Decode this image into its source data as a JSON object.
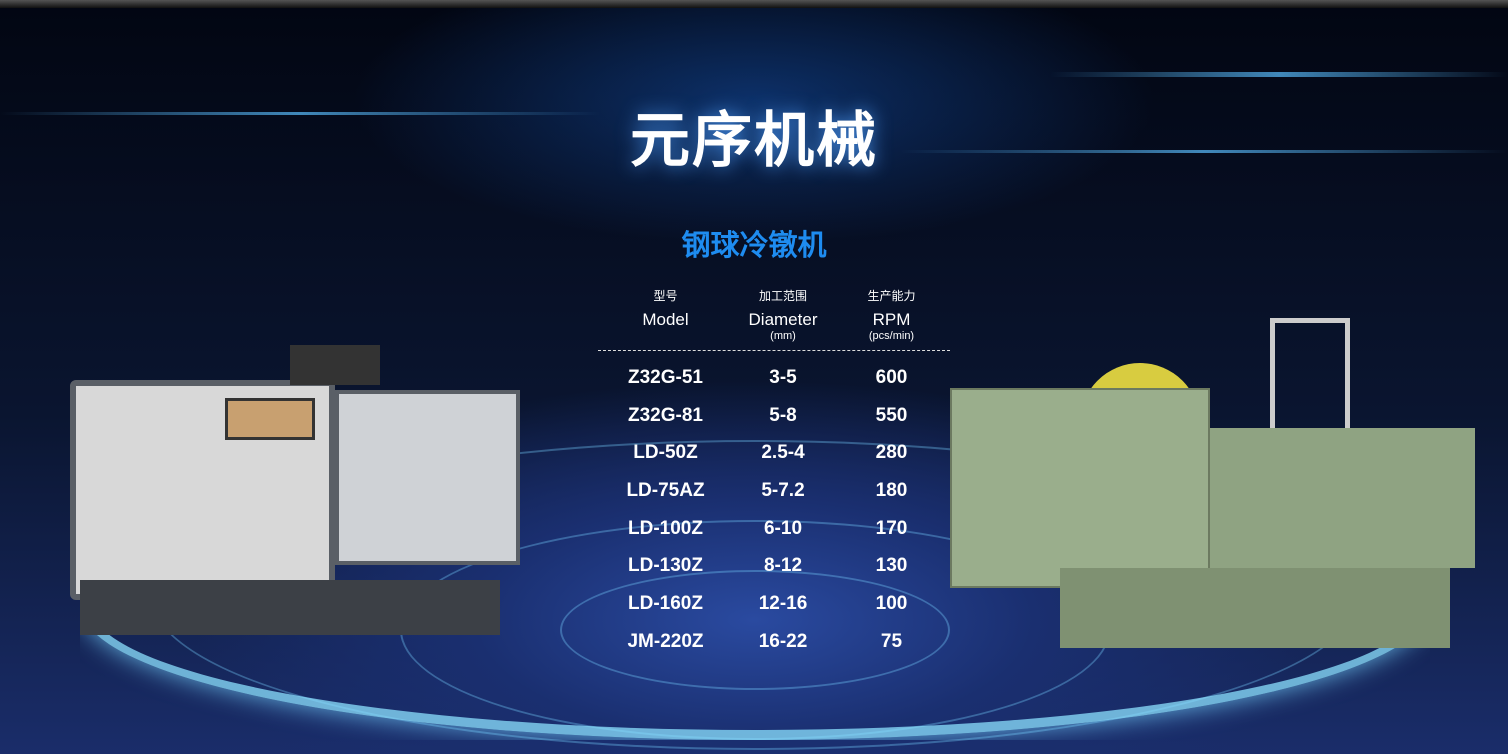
{
  "header": {
    "title": "元序机械"
  },
  "product": {
    "category": "钢球冷镦机",
    "columns": [
      {
        "cn": "型号",
        "en": "Model",
        "unit": ""
      },
      {
        "cn": "加工范围",
        "en": "Diameter",
        "unit": "(mm)"
      },
      {
        "cn": "生产能力",
        "en": "RPM",
        "unit": "(pcs/min)"
      }
    ],
    "rows": [
      [
        "Z32G-51",
        "3-5",
        "600"
      ],
      [
        "Z32G-81",
        "5-8",
        "550"
      ],
      [
        "LD-50Z",
        "2.5-4",
        "280"
      ],
      [
        "LD-75AZ",
        "5-7.2",
        "180"
      ],
      [
        "LD-100Z",
        "6-10",
        "170"
      ],
      [
        "LD-130Z",
        "8-12",
        "130"
      ],
      [
        "LD-160Z",
        "12-16",
        "100"
      ],
      [
        "JM-220Z",
        "16-22",
        "75"
      ]
    ]
  },
  "colors": {
    "accent": "#1e8cf0",
    "background": "#0a1530"
  }
}
